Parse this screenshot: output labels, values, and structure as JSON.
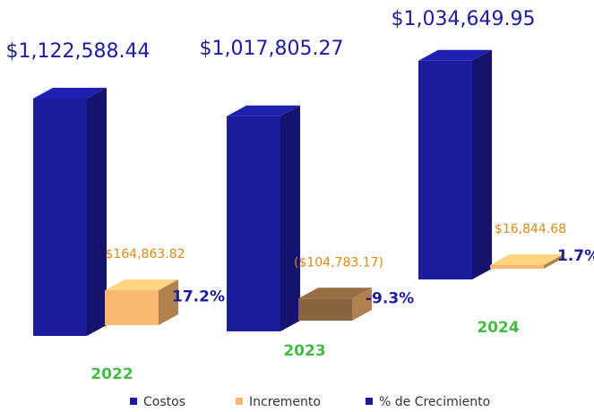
{
  "chart_data": {
    "type": "bar3d",
    "categories": [
      "2022",
      "2023",
      "2024"
    ],
    "series": [
      {
        "name": "Costos",
        "color": "#1c1c9c",
        "values": [
          1122588.44,
          1017805.27,
          1034649.95
        ],
        "value_labels": [
          "$1,122,588.44",
          "$1,017,805.27",
          "$1,034,649.95"
        ]
      },
      {
        "name": "Incremento",
        "color": "#f8b870",
        "values": [
          164863.82,
          -104783.17,
          16844.68
        ],
        "value_labels": [
          "$164,863.82",
          "($104,783.17)",
          "$16,844.68"
        ]
      },
      {
        "name": "% de Crecimiento",
        "color": "#1c1c9c",
        "values": [
          17.2,
          -9.3,
          1.7
        ],
        "value_labels": [
          "17.2%",
          "-9.3%",
          "1.7%"
        ]
      }
    ]
  }
}
